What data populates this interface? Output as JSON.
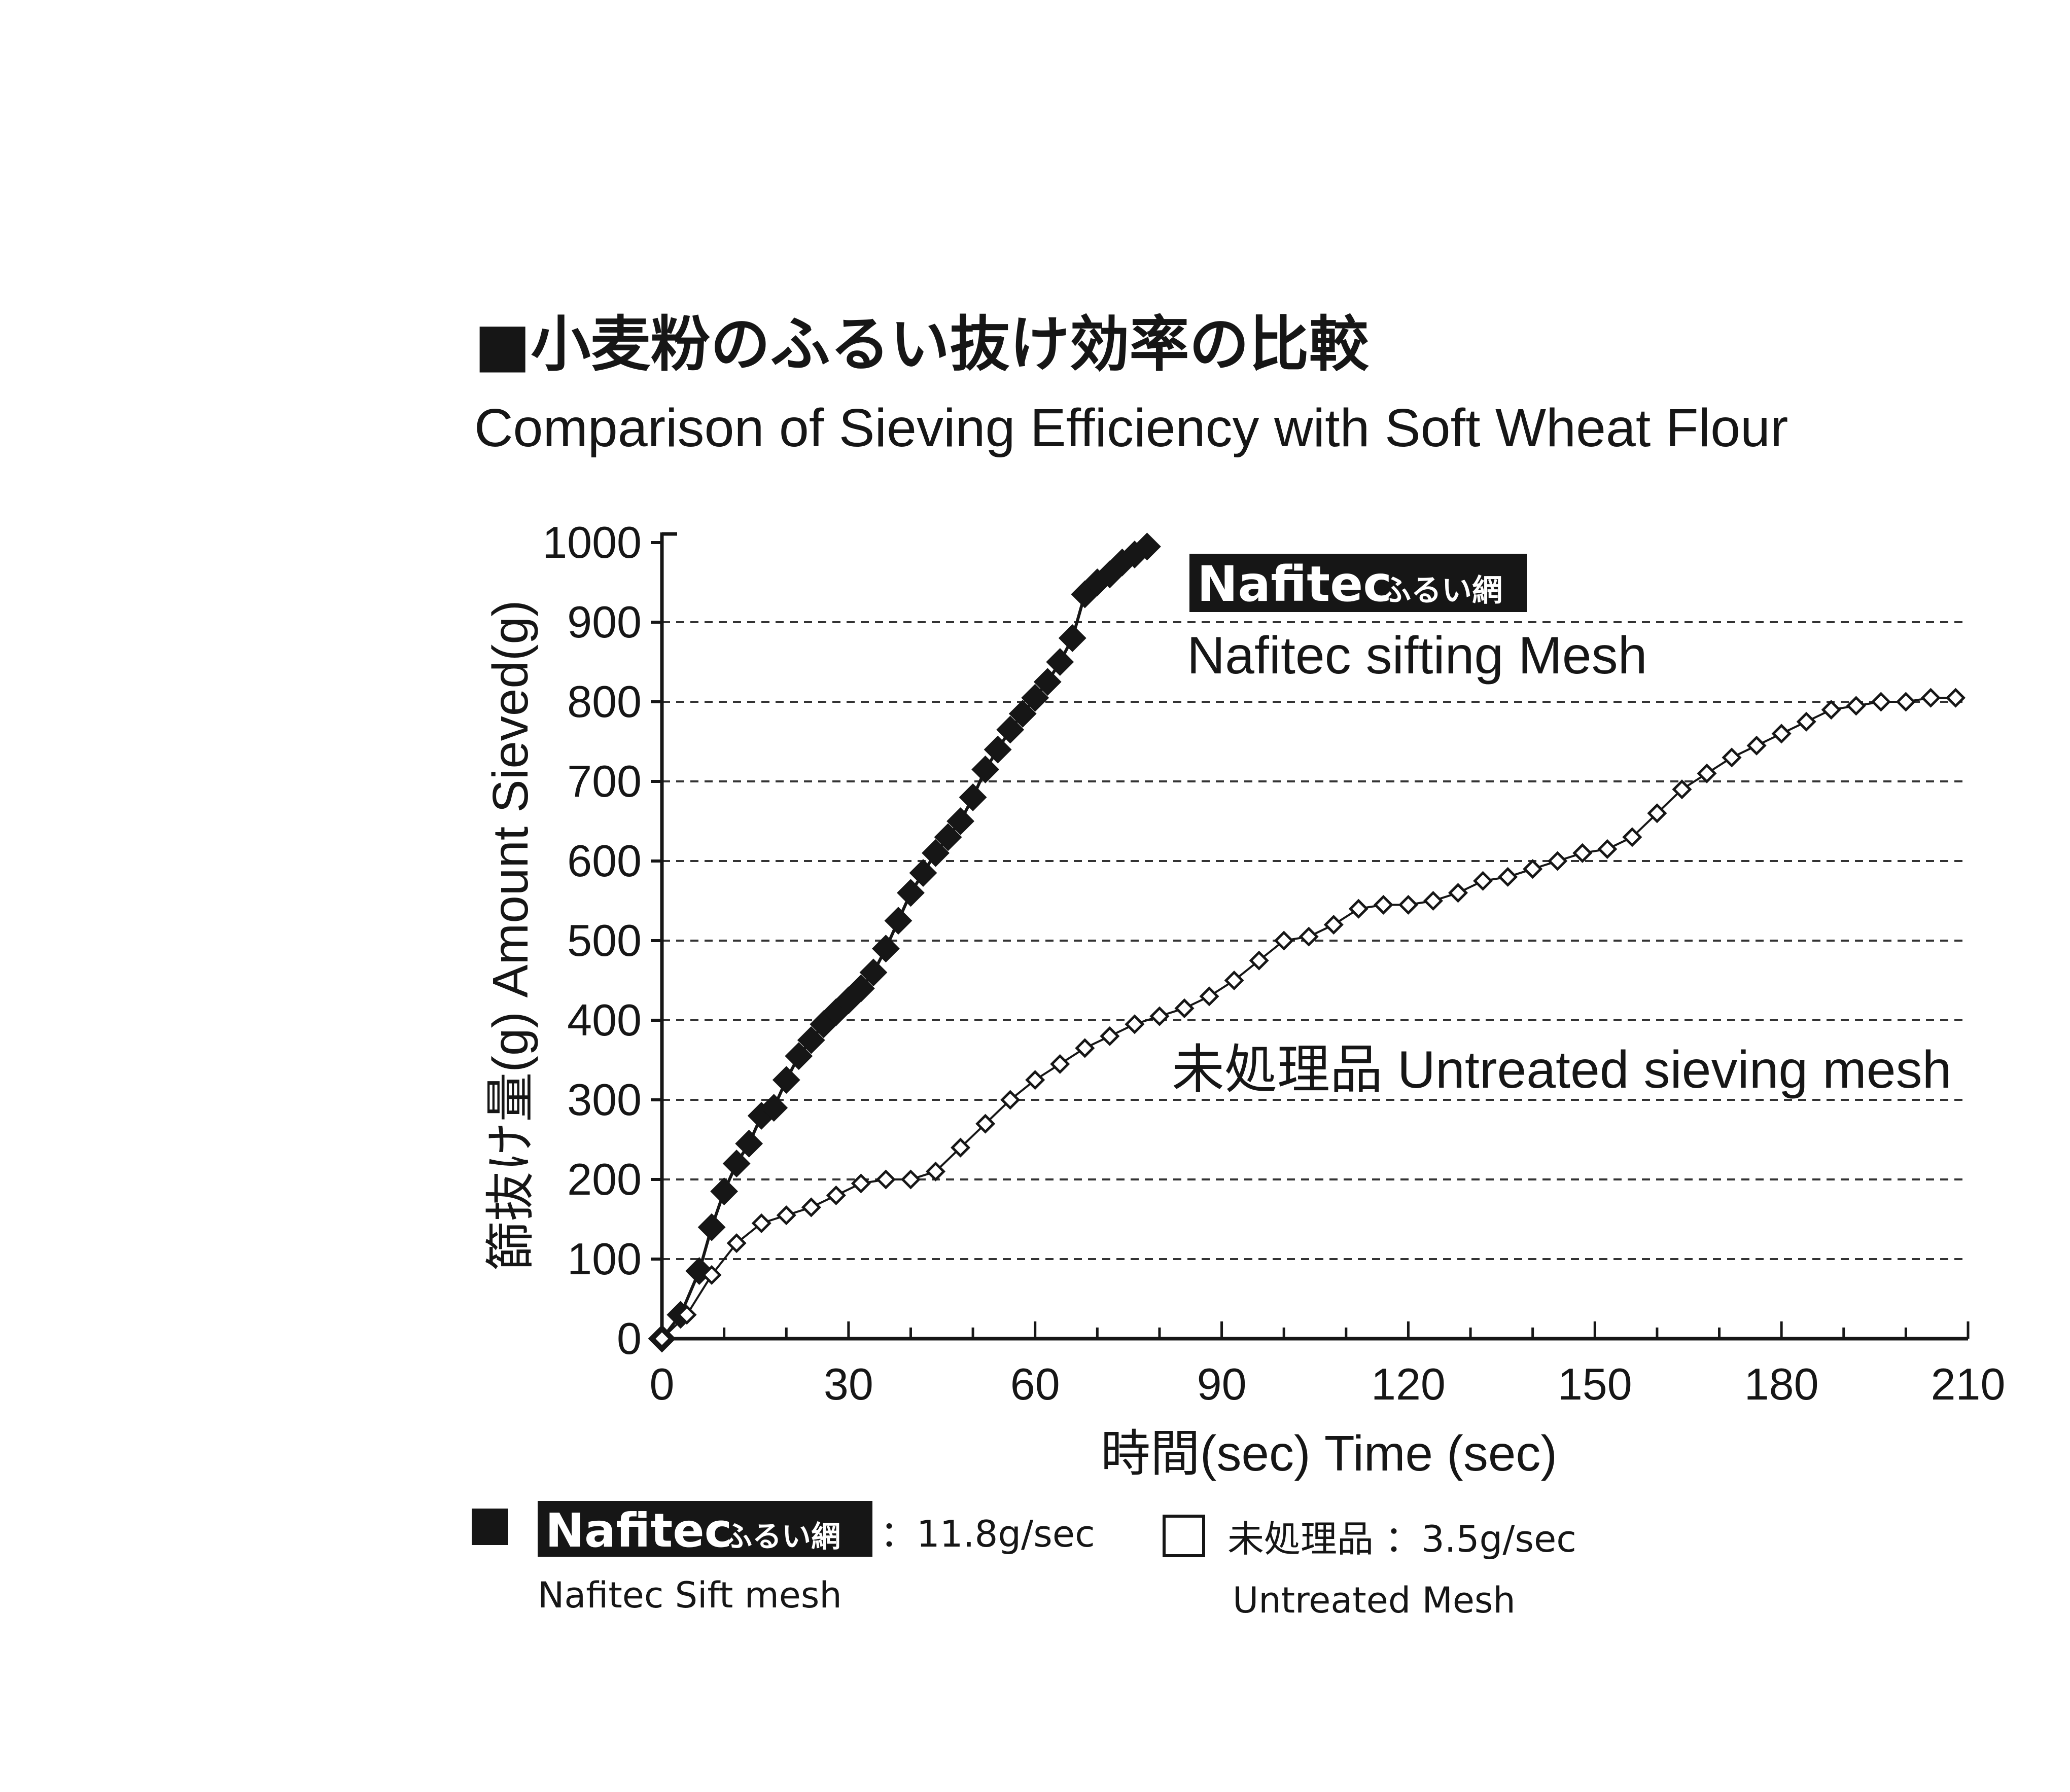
{
  "chart_data": {
    "type": "line",
    "title": "■小麦粉のふるい抜け効率の比較",
    "subtitle": "Comparison of Sieving Efficiency with Soft Wheat Flour",
    "ylabel": "篩抜け量(g) Amount Sieved(g)",
    "xlabel": "時間(sec) Time (sec)",
    "xlim": [
      0,
      210
    ],
    "ylim": [
      0,
      1000
    ],
    "xticks": [
      "0",
      "30",
      "60",
      "90",
      "120",
      "150",
      "180",
      "210"
    ],
    "yticks": [
      "0",
      "100",
      "200",
      "300",
      "400",
      "500",
      "600",
      "700",
      "800",
      "900",
      "1000"
    ],
    "grid": "horizontal dashed",
    "series": [
      {
        "name": "Nafitec sifting Mesh",
        "marker": "filled-diamond",
        "color": "#161616",
        "x": [
          0,
          3,
          6,
          8,
          10,
          12,
          14,
          16,
          18,
          20,
          22,
          24,
          26,
          28,
          30,
          32,
          34,
          36,
          38,
          40,
          42,
          44,
          46,
          48,
          50,
          52,
          54,
          56,
          58,
          60,
          62,
          64,
          66,
          68,
          70,
          72,
          74,
          76,
          78
        ],
        "y": [
          0,
          30,
          85,
          140,
          185,
          220,
          245,
          280,
          290,
          325,
          355,
          375,
          395,
          410,
          425,
          440,
          460,
          490,
          525,
          560,
          585,
          610,
          630,
          650,
          680,
          715,
          740,
          765,
          785,
          805,
          825,
          850,
          880,
          935,
          950,
          960,
          975,
          985,
          995
        ]
      },
      {
        "name": "未処理品 Untreated sieving mesh",
        "marker": "open-diamond",
        "color": "#161616",
        "x": [
          0,
          4,
          8,
          12,
          16,
          20,
          24,
          28,
          32,
          36,
          40,
          44,
          48,
          52,
          56,
          60,
          64,
          68,
          72,
          76,
          80,
          84,
          88,
          92,
          96,
          100,
          104,
          108,
          112,
          116,
          120,
          124,
          128,
          132,
          136,
          140,
          144,
          148,
          152,
          156,
          160,
          164,
          168,
          172,
          176,
          180,
          184,
          188,
          192,
          196,
          200,
          204,
          208
        ],
        "y": [
          0,
          30,
          80,
          120,
          145,
          155,
          165,
          180,
          195,
          200,
          200,
          210,
          240,
          270,
          300,
          325,
          345,
          365,
          380,
          395,
          405,
          415,
          430,
          450,
          475,
          500,
          505,
          520,
          540,
          545,
          545,
          550,
          560,
          575,
          580,
          590,
          600,
          610,
          615,
          630,
          660,
          690,
          710,
          730,
          745,
          760,
          775,
          790,
          795,
          800,
          800,
          805,
          805
        ]
      }
    ],
    "annotations": {
      "nafitec_badge": "Nafitec",
      "nafitec_badge_jp": "ふるい網",
      "nafitec_label": "Nafitec sifting Mesh",
      "untreated_label": "未処理品 Untreated sieving mesh"
    }
  },
  "legend": {
    "items": [
      {
        "marker": "filled-square",
        "badge": "Nafitec",
        "badge_jp": "ふるい網",
        "rate": "：11.8g/sec",
        "sub": "Nafitec Sift mesh"
      },
      {
        "marker": "open-square",
        "label": "未処理品",
        "rate": "：3.5g/sec",
        "sub": "Untreated Mesh"
      }
    ]
  }
}
